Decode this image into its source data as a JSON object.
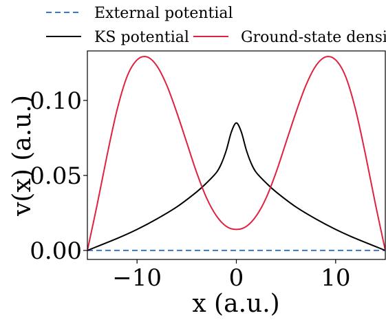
{
  "chart_data": {
    "type": "line",
    "title": "",
    "xlabel": "x (a.u.)",
    "ylabel": "v(x) (a.u.)",
    "xlim": [
      -15,
      15
    ],
    "ylim": [
      -0.006,
      0.133
    ],
    "x_ticks": [
      -10,
      0,
      10
    ],
    "x_tick_labels": [
      "−10",
      "0",
      "10"
    ],
    "y_ticks": [
      0.0,
      0.05,
      0.1
    ],
    "y_tick_labels": [
      "0.00",
      "0.05",
      "0.10"
    ],
    "grid": false,
    "legend_placement": "above plot, outside",
    "series": [
      {
        "name": "External potential",
        "color": "#3b78c4",
        "style": "dashed",
        "x": [
          -15,
          15
        ],
        "y": [
          0.0,
          0.0
        ]
      },
      {
        "name": "KS potential",
        "color": "#000000",
        "style": "solid",
        "x": [
          -15,
          -12,
          -10,
          -8,
          -6,
          -4,
          -3,
          -2,
          -1.5,
          -1,
          -0.5,
          0,
          0.5,
          1,
          1.5,
          2,
          3,
          4,
          6,
          8,
          10,
          12,
          15
        ],
        "y": [
          0.0,
          0.008,
          0.014,
          0.021,
          0.029,
          0.039,
          0.045,
          0.052,
          0.058,
          0.067,
          0.079,
          0.085,
          0.079,
          0.067,
          0.058,
          0.052,
          0.045,
          0.039,
          0.029,
          0.021,
          0.014,
          0.008,
          0.0
        ]
      },
      {
        "name": "Ground-state density",
        "color": "#e0203f",
        "style": "solid",
        "x": [
          -15,
          -14,
          -13,
          -12,
          -11,
          -10,
          -9,
          -8,
          -7,
          -6,
          -5,
          -4,
          -3,
          -2,
          -1,
          0,
          1,
          2,
          3,
          4,
          5,
          6,
          7,
          8,
          9,
          10,
          11,
          12,
          13,
          14,
          15
        ],
        "y": [
          0.0,
          0.031,
          0.064,
          0.094,
          0.116,
          0.127,
          0.129,
          0.123,
          0.11,
          0.092,
          0.072,
          0.052,
          0.035,
          0.023,
          0.016,
          0.014,
          0.016,
          0.023,
          0.035,
          0.052,
          0.072,
          0.092,
          0.11,
          0.123,
          0.129,
          0.127,
          0.116,
          0.094,
          0.064,
          0.031,
          0.0
        ]
      }
    ]
  }
}
